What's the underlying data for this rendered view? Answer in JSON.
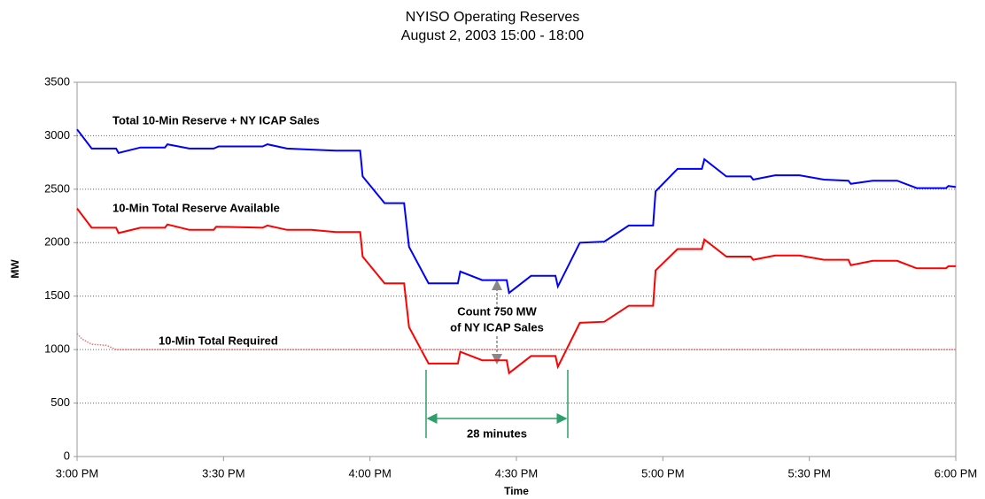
{
  "chart_data": {
    "type": "line",
    "title": "NYISO Operating Reserves",
    "subtitle": "August 2, 2003 15:00 - 18:00",
    "x_label": "Time",
    "y_label": "MW",
    "xlim": [
      0,
      180
    ],
    "xticks": [
      {
        "value": 0,
        "label": "3:00 PM"
      },
      {
        "value": 30,
        "label": "3:30 PM"
      },
      {
        "value": 60,
        "label": "4:00 PM"
      },
      {
        "value": 90,
        "label": "4:30 PM"
      },
      {
        "value": 120,
        "label": "5:00 PM"
      },
      {
        "value": 150,
        "label": "5:30 PM"
      },
      {
        "value": 180,
        "label": "6:00 PM"
      }
    ],
    "ylim": [
      0,
      3500
    ],
    "yticks": [
      0,
      500,
      1000,
      1500,
      2000,
      2500,
      3000,
      3500
    ],
    "grid": true,
    "series": [
      {
        "name": "Total 10-Min Reserve + NY ICAP Sales",
        "color": "#0000ff",
        "dash": "solid",
        "x": [
          0,
          3,
          8,
          8.5,
          13,
          18,
          18.5,
          23,
          28,
          29,
          38,
          39,
          43,
          48,
          53,
          58,
          58.5,
          63,
          67,
          68,
          72,
          78,
          78.5,
          83,
          88,
          88.5,
          93,
          98,
          98.5,
          103,
          108,
          113,
          118,
          118.5,
          123,
          128,
          128.5,
          133,
          138,
          138.5,
          143,
          148,
          153,
          158,
          158.5,
          163,
          168,
          172,
          178,
          178.5,
          180
        ],
        "values": [
          3060,
          2880,
          2880,
          2840,
          2890,
          2890,
          2920,
          2880,
          2880,
          2900,
          2900,
          2920,
          2880,
          2870,
          2860,
          2860,
          2620,
          2370,
          2370,
          1960,
          1620,
          1620,
          1730,
          1650,
          1650,
          1530,
          1690,
          1690,
          1590,
          2000,
          2010,
          2160,
          2160,
          2480,
          2690,
          2690,
          2780,
          2620,
          2620,
          2590,
          2630,
          2630,
          2590,
          2580,
          2550,
          2580,
          2580,
          2510,
          2510,
          2530,
          2520
        ]
      },
      {
        "name": "10-Min Total Reserve Available",
        "color": "#ff0000",
        "dash": "solid",
        "x": [
          0,
          3,
          8,
          8.5,
          13,
          18,
          18.5,
          23,
          28,
          28.5,
          38,
          39,
          43,
          48,
          53,
          58,
          58.5,
          63,
          67,
          68,
          72,
          78,
          78.5,
          83,
          88,
          88.5,
          93,
          98,
          98.5,
          103,
          108,
          113,
          118,
          118.5,
          123,
          128,
          128.5,
          133,
          138,
          138.5,
          143,
          148,
          153,
          158,
          158.5,
          163,
          168,
          172,
          178,
          178.5,
          180
        ],
        "values": [
          2320,
          2140,
          2140,
          2090,
          2140,
          2140,
          2170,
          2120,
          2120,
          2150,
          2140,
          2160,
          2120,
          2120,
          2100,
          2100,
          1870,
          1620,
          1620,
          1210,
          870,
          870,
          980,
          900,
          900,
          780,
          940,
          940,
          840,
          1250,
          1260,
          1410,
          1410,
          1740,
          1940,
          1940,
          2030,
          1870,
          1870,
          1840,
          1880,
          1880,
          1840,
          1840,
          1790,
          1830,
          1830,
          1760,
          1760,
          1780,
          1780
        ]
      },
      {
        "name": "10-Min Total Required",
        "color": "#ff6666",
        "dash": "dotted",
        "x": [
          0,
          1,
          3,
          6,
          8,
          180
        ],
        "values": [
          1150,
          1100,
          1050,
          1040,
          1000,
          1000
        ]
      }
    ],
    "annotations": [
      "Count 750 MW",
      "of NY ICAP Sales",
      "28 minutes"
    ]
  }
}
